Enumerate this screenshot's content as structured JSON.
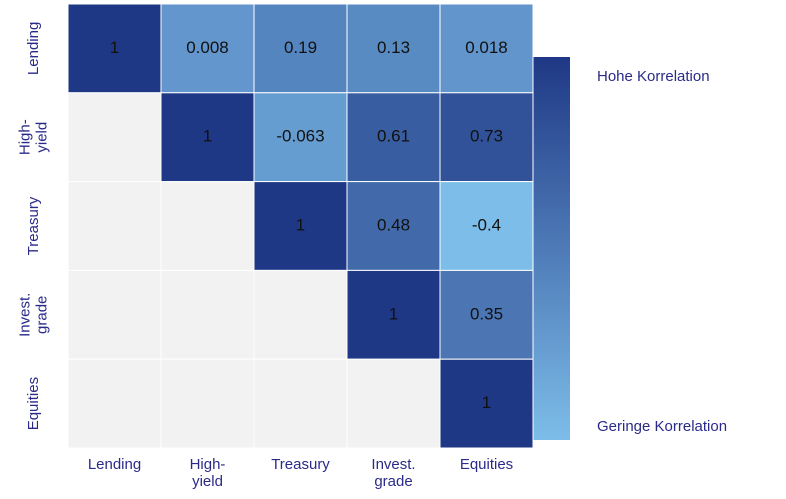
{
  "chart_data": {
    "type": "heatmap",
    "rows": [
      "Lending",
      "High-\nyield",
      "Treasury",
      "Invest.\ngrade",
      "Equities"
    ],
    "columns": [
      "Lending",
      "High-\nyield",
      "Treasury",
      "Invest.\ngrade",
      "Equities"
    ],
    "values": [
      [
        1,
        0.008,
        0.19,
        0.13,
        0.018
      ],
      [
        null,
        1,
        -0.063,
        0.61,
        0.73
      ],
      [
        null,
        null,
        1,
        0.48,
        -0.4
      ],
      [
        null,
        null,
        null,
        1,
        0.35
      ],
      [
        null,
        null,
        null,
        null,
        1
      ]
    ],
    "clim": [
      -0.4,
      1
    ],
    "colors": [
      "#7dbde9",
      "#1f3885"
    ],
    "colorbar_labels": {
      "high": "Hohe Korrelation",
      "low": "Geringe Korrelation"
    }
  }
}
